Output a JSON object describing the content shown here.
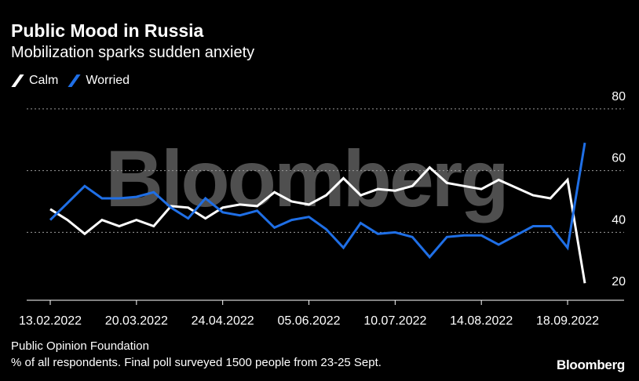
{
  "title": "Public Mood in Russia",
  "subtitle": "Mobilization sparks sudden anxiety",
  "legend": [
    {
      "label": "Calm",
      "color": "#ffffff"
    },
    {
      "label": "Worried",
      "color": "#1f6fe6"
    }
  ],
  "watermark": "Bloomberg",
  "footer": {
    "source": "Public Opinion Foundation",
    "note": "% of all respondents. Final poll surveyed 1500 people from 23-25 Sept."
  },
  "brand": "Bloomberg",
  "chart_data": {
    "type": "line",
    "xlabel": "",
    "ylabel": "",
    "x_tick_labels": [
      "13.02.2022",
      "20.03.2022",
      "24.04.2022",
      "05.06.2022",
      "10.07.2022",
      "14.08.2022",
      "18.09.2022"
    ],
    "x_tick_indices": [
      0,
      5,
      10,
      15,
      20,
      25,
      30
    ],
    "y_ticks": [
      20,
      40,
      60,
      80
    ],
    "ylim": [
      18,
      83
    ],
    "grid": true,
    "legend_position": "top-left",
    "series": [
      {
        "name": "Calm",
        "color": "#ffffff",
        "values": [
          47.5,
          44,
          39.5,
          44,
          42,
          44,
          42,
          48.5,
          48,
          44.5,
          48,
          49,
          48.5,
          53,
          50,
          49,
          52,
          57.5,
          52,
          54,
          53.5,
          55,
          61,
          56,
          55,
          54,
          57,
          54.5,
          52,
          51,
          57,
          23.5
        ]
      },
      {
        "name": "Worried",
        "color": "#1f6fe6",
        "values": [
          44,
          49.5,
          55,
          51,
          51,
          51.5,
          53,
          48,
          44.5,
          51,
          46.5,
          45.5,
          47,
          41.5,
          44,
          45,
          41,
          35,
          43,
          39.5,
          40,
          38.5,
          32,
          38.5,
          39,
          39,
          36,
          39,
          42,
          42,
          35,
          69
        ]
      }
    ]
  }
}
